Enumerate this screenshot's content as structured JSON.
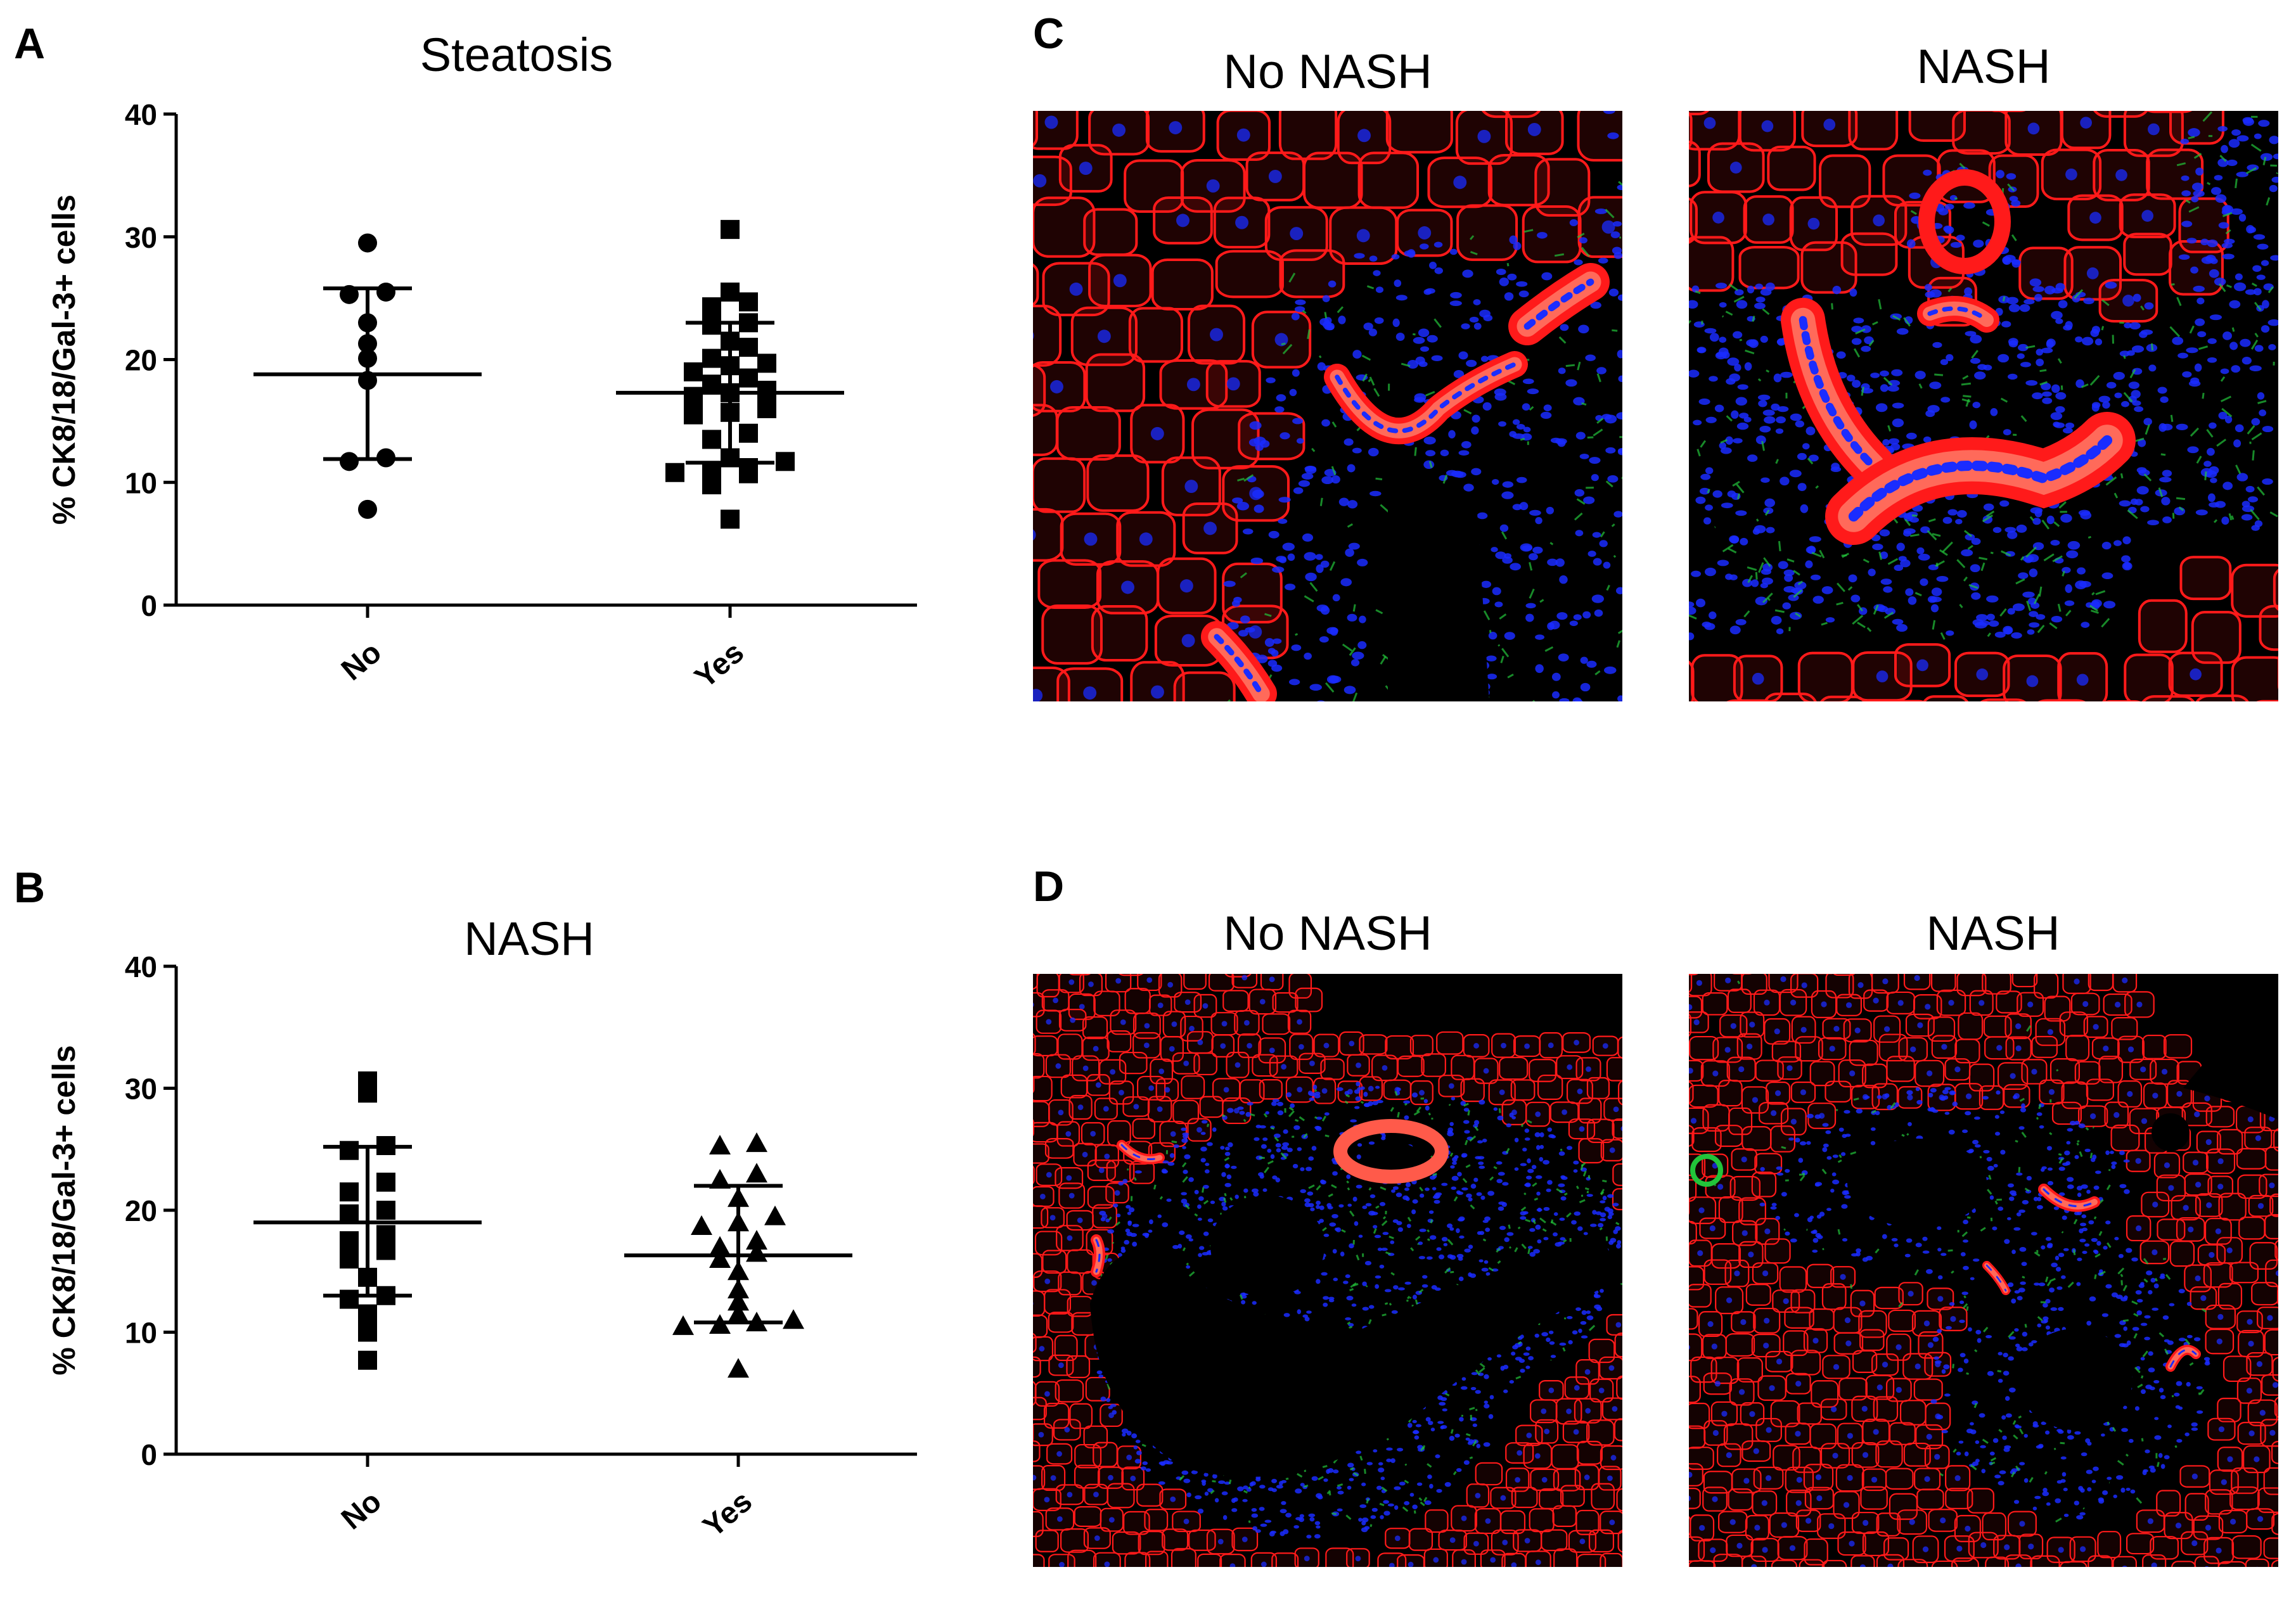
{
  "panels": {
    "A": "A",
    "B": "B",
    "C": "C",
    "D": "D"
  },
  "chart_data": [
    {
      "type": "scatter",
      "title": "Steatosis",
      "ylabel": "% CK8/18/Gal-3+ cells",
      "xlabel": "",
      "categories": [
        "No",
        "Yes"
      ],
      "ylim": [
        0,
        40
      ],
      "yticks": [
        0,
        10,
        20,
        30,
        40
      ],
      "grid": false,
      "series": [
        {
          "marker": "circle",
          "values": [
            29.5,
            25.5,
            25.3,
            23.0,
            21.3,
            20.1,
            18.3,
            12.0,
            11.7,
            7.8
          ],
          "mean": 18.8,
          "sd_upper": 25.8,
          "sd_lower": 11.9
        },
        {
          "marker": "square",
          "values": [
            30.6,
            25.5,
            24.7,
            24.3,
            23.0,
            22.8,
            21.5,
            21.0,
            20.1,
            19.7,
            19.5,
            19.0,
            18.5,
            18.0,
            17.5,
            17.3,
            17.0,
            16.0,
            15.7,
            15.5,
            14.0,
            13.5,
            12.0,
            11.7,
            11.2,
            10.9,
            10.8,
            10.7,
            9.8,
            7.0
          ],
          "mean": 17.3,
          "sd_upper": 23.0,
          "sd_lower": 11.6
        }
      ]
    },
    {
      "type": "scatter",
      "title": "NASH",
      "ylabel": "% CK8/18/Gal-3+ cells",
      "xlabel": "",
      "categories": [
        "No",
        "Yes"
      ],
      "ylim": [
        0,
        40
      ],
      "yticks": [
        0,
        10,
        20,
        30,
        40
      ],
      "grid": false,
      "series": [
        {
          "marker": "square",
          "values": [
            30.6,
            29.6,
            25.3,
            24.9,
            22.3,
            21.5,
            20.0,
            19.7,
            18.0,
            17.5,
            16.7,
            16.0,
            14.5,
            13.0,
            12.7,
            11.5,
            10.0,
            7.7
          ],
          "mean": 19.0,
          "sd_upper": 25.2,
          "sd_lower": 13.0
        },
        {
          "marker": "triangle",
          "values": [
            25.5,
            25.3,
            23.0,
            22.5,
            21.0,
            19.5,
            19.0,
            18.7,
            17.5,
            17.0,
            16.5,
            16.0,
            15.0,
            13.5,
            12.5,
            11.5,
            11.0,
            10.8,
            10.6,
            10.5,
            7.0
          ],
          "mean": 16.3,
          "sd_upper": 22.0,
          "sd_lower": 10.8
        }
      ]
    }
  ],
  "micrographs": {
    "C": {
      "left_title": "No NASH",
      "right_title": "NASH"
    },
    "D": {
      "left_title": "No NASH",
      "right_title": "NASH"
    }
  },
  "colors": {
    "membrane": "#ff1a1a",
    "nuclei": "#1a2cff",
    "galectin": "#22c43a",
    "background": "#000000",
    "axis": "#000000"
  }
}
